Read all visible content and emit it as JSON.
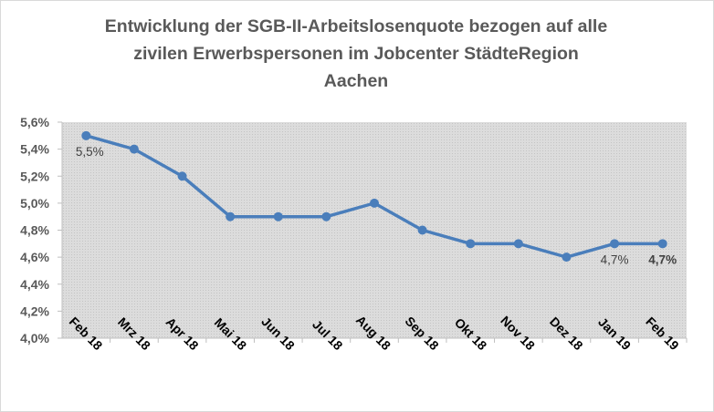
{
  "chart_data": {
    "type": "line",
    "title": "Entwicklung der SGB-II-Arbeitslosenquote bezogen auf alle zivilen Erwerbspersonen im Jobcenter StädteRegion Aachen",
    "title_lines": [
      "Entwicklung der SGB-II-Arbeitslosenquote bezogen auf alle",
      "zivilen Erwerbspersonen im Jobcenter StädteRegion",
      "Aachen"
    ],
    "categories": [
      "Feb 18",
      "Mrz 18",
      "Apr 18",
      "Mai 18",
      "Jun 18",
      "Jul 18",
      "Aug 18",
      "Sep 18",
      "Okt 18",
      "Nov 18",
      "Dez 18",
      "Jan 19",
      "Feb 19"
    ],
    "series": [
      {
        "name": "SGB-II-Arbeitslosenquote",
        "values": [
          5.5,
          5.4,
          5.2,
          4.9,
          4.9,
          4.9,
          5.0,
          4.8,
          4.7,
          4.7,
          4.6,
          4.7,
          4.7
        ],
        "color": "#4a7ebb"
      }
    ],
    "data_labels": [
      {
        "index": 0,
        "text": "5,5%",
        "bold": false
      },
      {
        "index": 11,
        "text": "4,7%",
        "bold": false
      },
      {
        "index": 12,
        "text": "4,7%",
        "bold": true
      }
    ],
    "yticks": [
      "4,0%",
      "4,2%",
      "4,4%",
      "4,6%",
      "4,8%",
      "5,0%",
      "5,2%",
      "5,4%",
      "5,6%"
    ],
    "ylim": [
      4.0,
      5.6
    ],
    "xlabel": "",
    "ylabel": "",
    "grid": false,
    "legend": "none",
    "plot_background": "#d9d9d9"
  }
}
